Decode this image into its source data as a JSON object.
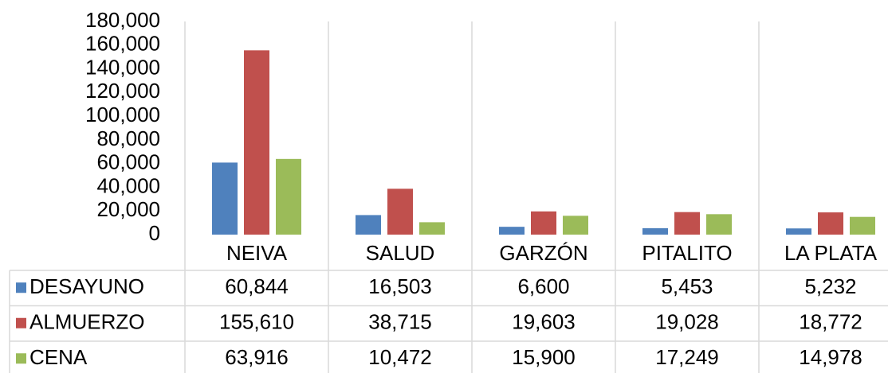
{
  "chart_data": {
    "type": "bar",
    "categories": [
      "NEIVA",
      "SALUD",
      "GARZÓN",
      "PITALITO",
      "LA PLATA"
    ],
    "series": [
      {
        "name": "DESAYUNO",
        "color": "#4f81bd",
        "values": [
          60844,
          16503,
          6600,
          5453,
          5232
        ],
        "value_labels": [
          "60,844",
          "16,503",
          "6,600",
          "5,453",
          "5,232"
        ]
      },
      {
        "name": "ALMUERZO",
        "color": "#c0504d",
        "values": [
          155610,
          38715,
          19603,
          19028,
          18772
        ],
        "value_labels": [
          "155,610",
          "38,715",
          "19,603",
          "19,028",
          "18,772"
        ]
      },
      {
        "name": "CENA",
        "color": "#9bbb59",
        "values": [
          63916,
          10472,
          15900,
          17249,
          14978
        ],
        "value_labels": [
          "63,916",
          "10,472",
          "15,900",
          "17,249",
          "14,978"
        ]
      }
    ],
    "ylim": [
      0,
      180000
    ],
    "yticks": [
      0,
      {
        "value": 20000,
        "label": "20,000"
      },
      {
        "value": 40000,
        "label": "40,000"
      },
      {
        "value": 60000,
        "label": "60,000"
      },
      {
        "value": 80000,
        "label": "80,000"
      },
      {
        "value": 100000,
        "label": "100,000"
      },
      {
        "value": 120000,
        "label": "120,000"
      },
      {
        "value": 140000,
        "label": "140,000"
      },
      {
        "value": 160000,
        "label": "160,000"
      },
      {
        "value": 180000,
        "label": "180,000"
      }
    ],
    "grid": false
  }
}
